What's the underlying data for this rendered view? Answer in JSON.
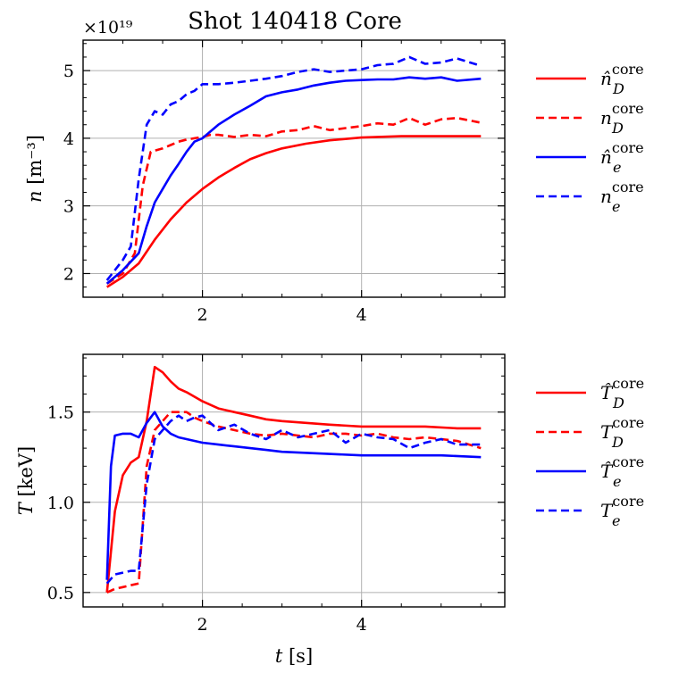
{
  "figure": {
    "title": "Shot 140418 Core"
  },
  "chart_data": [
    {
      "type": "line",
      "id": "density",
      "xlabel_var": "t",
      "xlabel_unit": "[s]",
      "ylabel_var": "n",
      "ylabel_unit": "[m⁻³]",
      "offset_text": "×10¹⁹",
      "xlim": [
        0.5,
        5.8
      ],
      "ylim": [
        1.65,
        5.45
      ],
      "xticks": [
        2,
        4
      ],
      "xtick_labels": [
        "2",
        "4"
      ],
      "yticks": [
        2,
        3,
        4,
        5
      ],
      "ytick_labels": [
        "2",
        "3",
        "4",
        "5"
      ],
      "grid": true,
      "legend_position": "outside-right",
      "series": [
        {
          "name": "n̂_D^core",
          "label_base": "n̂",
          "label_sub": "D",
          "label_sup": "core",
          "color": "#ff0000",
          "dash": "solid",
          "x": [
            0.8,
            1.0,
            1.2,
            1.4,
            1.6,
            1.8,
            2.0,
            2.2,
            2.4,
            2.6,
            2.8,
            3.0,
            3.3,
            3.6,
            4.0,
            4.5,
            5.0,
            5.5
          ],
          "y": [
            1.8,
            1.95,
            2.15,
            2.5,
            2.8,
            3.05,
            3.25,
            3.42,
            3.56,
            3.69,
            3.78,
            3.85,
            3.92,
            3.97,
            4.01,
            4.03,
            4.03,
            4.03
          ]
        },
        {
          "name": "n_D^core",
          "label_base": "n",
          "label_sub": "D",
          "label_sup": "core",
          "color": "#ff0000",
          "dash": "dashed",
          "x": [
            0.8,
            1.0,
            1.15,
            1.25,
            1.35,
            1.5,
            1.6,
            1.7,
            1.8,
            1.9,
            2.0,
            2.1,
            2.2,
            2.4,
            2.6,
            2.8,
            3.0,
            3.2,
            3.4,
            3.6,
            3.8,
            4.0,
            4.2,
            4.4,
            4.6,
            4.8,
            5.0,
            5.2,
            5.5
          ],
          "y": [
            1.85,
            2.0,
            2.3,
            3.3,
            3.8,
            3.85,
            3.9,
            3.95,
            3.98,
            4.0,
            4.02,
            4.05,
            4.05,
            4.02,
            4.05,
            4.03,
            4.1,
            4.12,
            4.18,
            4.12,
            4.15,
            4.18,
            4.22,
            4.2,
            4.3,
            4.2,
            4.28,
            4.3,
            4.23
          ]
        },
        {
          "name": "n̂_e^core",
          "label_base": "n̂",
          "label_sub": "e",
          "label_sup": "core",
          "color": "#0000ff",
          "dash": "solid",
          "x": [
            0.8,
            1.0,
            1.2,
            1.3,
            1.4,
            1.5,
            1.6,
            1.7,
            1.8,
            1.9,
            2.0,
            2.2,
            2.4,
            2.6,
            2.8,
            3.0,
            3.2,
            3.4,
            3.6,
            3.8,
            4.0,
            4.2,
            4.4,
            4.6,
            4.8,
            5.0,
            5.2,
            5.5
          ],
          "y": [
            1.85,
            2.05,
            2.3,
            2.7,
            3.05,
            3.25,
            3.45,
            3.62,
            3.8,
            3.95,
            4.0,
            4.2,
            4.35,
            4.48,
            4.62,
            4.68,
            4.72,
            4.78,
            4.82,
            4.85,
            4.86,
            4.87,
            4.87,
            4.9,
            4.88,
            4.9,
            4.85,
            4.88
          ]
        },
        {
          "name": "n_e^core",
          "label_base": "n",
          "label_sub": "e",
          "label_sup": "core",
          "color": "#0000ff",
          "dash": "dashed",
          "x": [
            0.8,
            1.0,
            1.1,
            1.2,
            1.3,
            1.4,
            1.5,
            1.6,
            1.7,
            1.8,
            1.9,
            2.0,
            2.1,
            2.2,
            2.4,
            2.6,
            2.8,
            3.0,
            3.2,
            3.4,
            3.6,
            3.8,
            4.0,
            4.2,
            4.4,
            4.6,
            4.8,
            5.0,
            5.2,
            5.5
          ],
          "y": [
            1.9,
            2.2,
            2.4,
            3.4,
            4.2,
            4.4,
            4.35,
            4.5,
            4.55,
            4.65,
            4.7,
            4.8,
            4.8,
            4.8,
            4.82,
            4.85,
            4.88,
            4.92,
            4.98,
            5.02,
            4.98,
            5.0,
            5.02,
            5.08,
            5.1,
            5.2,
            5.1,
            5.12,
            5.18,
            5.07
          ]
        }
      ]
    },
    {
      "type": "line",
      "id": "temperature",
      "xlabel_var": "t",
      "xlabel_unit": "[s]",
      "ylabel_var": "T",
      "ylabel_unit": "[keV]",
      "xlim": [
        0.5,
        5.8
      ],
      "ylim": [
        0.42,
        1.82
      ],
      "xticks": [
        2,
        4
      ],
      "xtick_labels": [
        "2",
        "4"
      ],
      "yticks": [
        0.5,
        1.0,
        1.5
      ],
      "ytick_labels": [
        "0.5",
        "1.0",
        "1.5"
      ],
      "grid": true,
      "legend_position": "outside-right",
      "series": [
        {
          "name": "T̂_D^core",
          "label_base": "T̂",
          "label_sub": "D",
          "label_sup": "core",
          "color": "#ff0000",
          "dash": "solid",
          "x": [
            0.8,
            0.9,
            1.0,
            1.1,
            1.2,
            1.3,
            1.4,
            1.5,
            1.6,
            1.7,
            1.8,
            2.0,
            2.2,
            2.4,
            2.6,
            2.8,
            3.0,
            3.3,
            3.6,
            4.0,
            4.4,
            4.8,
            5.2,
            5.5
          ],
          "y": [
            0.5,
            0.95,
            1.15,
            1.22,
            1.25,
            1.45,
            1.75,
            1.72,
            1.67,
            1.63,
            1.61,
            1.56,
            1.52,
            1.5,
            1.48,
            1.46,
            1.45,
            1.44,
            1.43,
            1.42,
            1.42,
            1.42,
            1.41,
            1.41
          ]
        },
        {
          "name": "T_D^core",
          "label_base": "T",
          "label_sub": "D",
          "label_sup": "core",
          "color": "#ff0000",
          "dash": "dashed",
          "x": [
            0.8,
            0.9,
            1.0,
            1.1,
            1.2,
            1.3,
            1.4,
            1.5,
            1.6,
            1.7,
            1.8,
            1.9,
            2.0,
            2.2,
            2.4,
            2.6,
            2.8,
            3.0,
            3.2,
            3.4,
            3.6,
            3.8,
            4.0,
            4.2,
            4.4,
            4.6,
            4.8,
            5.0,
            5.2,
            5.5
          ],
          "y": [
            0.5,
            0.52,
            0.53,
            0.54,
            0.55,
            1.2,
            1.4,
            1.45,
            1.5,
            1.5,
            1.5,
            1.47,
            1.45,
            1.42,
            1.4,
            1.38,
            1.37,
            1.38,
            1.37,
            1.36,
            1.38,
            1.38,
            1.37,
            1.38,
            1.36,
            1.35,
            1.36,
            1.35,
            1.34,
            1.3
          ]
        },
        {
          "name": "T̂_e^core",
          "label_base": "T̂",
          "label_sub": "e",
          "label_sup": "core",
          "color": "#0000ff",
          "dash": "solid",
          "x": [
            0.8,
            0.85,
            0.9,
            1.0,
            1.1,
            1.2,
            1.3,
            1.4,
            1.5,
            1.6,
            1.7,
            1.8,
            2.0,
            2.2,
            2.4,
            2.6,
            2.8,
            3.0,
            3.5,
            4.0,
            4.5,
            5.0,
            5.5
          ],
          "y": [
            0.57,
            1.2,
            1.37,
            1.38,
            1.38,
            1.36,
            1.44,
            1.5,
            1.42,
            1.38,
            1.36,
            1.35,
            1.33,
            1.32,
            1.31,
            1.3,
            1.29,
            1.28,
            1.27,
            1.26,
            1.26,
            1.26,
            1.25
          ]
        },
        {
          "name": "T_e^core",
          "label_base": "T",
          "label_sub": "e",
          "label_sup": "core",
          "color": "#0000ff",
          "dash": "dashed",
          "x": [
            0.8,
            0.9,
            1.0,
            1.1,
            1.2,
            1.3,
            1.4,
            1.5,
            1.6,
            1.7,
            1.8,
            1.9,
            2.0,
            2.2,
            2.4,
            2.6,
            2.8,
            3.0,
            3.2,
            3.4,
            3.6,
            3.8,
            4.0,
            4.2,
            4.4,
            4.6,
            4.8,
            5.0,
            5.2,
            5.5
          ],
          "y": [
            0.55,
            0.6,
            0.61,
            0.62,
            0.62,
            1.1,
            1.35,
            1.4,
            1.45,
            1.48,
            1.45,
            1.47,
            1.48,
            1.4,
            1.43,
            1.38,
            1.35,
            1.4,
            1.36,
            1.38,
            1.4,
            1.33,
            1.38,
            1.36,
            1.35,
            1.3,
            1.33,
            1.35,
            1.32,
            1.32
          ]
        }
      ]
    }
  ]
}
